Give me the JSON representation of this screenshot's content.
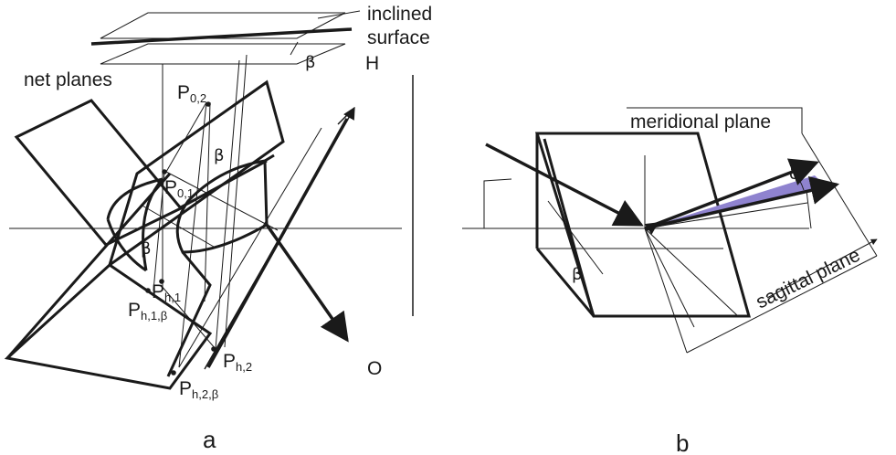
{
  "panel_a": {
    "label": "a",
    "inclined_surface_line1": "inclined",
    "inclined_surface_line2": "surface",
    "net_planes": "net planes",
    "beta": "β",
    "H": "H",
    "O": "O",
    "points": {
      "p02": {
        "main": "P",
        "sub": "0,2"
      },
      "p01": {
        "main": "P",
        "sub": "0,1"
      },
      "ph1": {
        "main": "P",
        "sub": "h,1"
      },
      "ph1b": {
        "main": "P",
        "sub": "h,1,β"
      },
      "ph2": {
        "main": "P",
        "sub": "h,2"
      },
      "ph2b": {
        "main": "P",
        "sub": "h,2,β"
      }
    }
  },
  "panel_b": {
    "label": "b",
    "meridional_plane": "meridional plane",
    "sagittal_plane": "sagittal plane",
    "beta": "β",
    "delta": "δ"
  },
  "colors": {
    "ink": "#1a1a1a",
    "wedge": "#8f83cf"
  }
}
